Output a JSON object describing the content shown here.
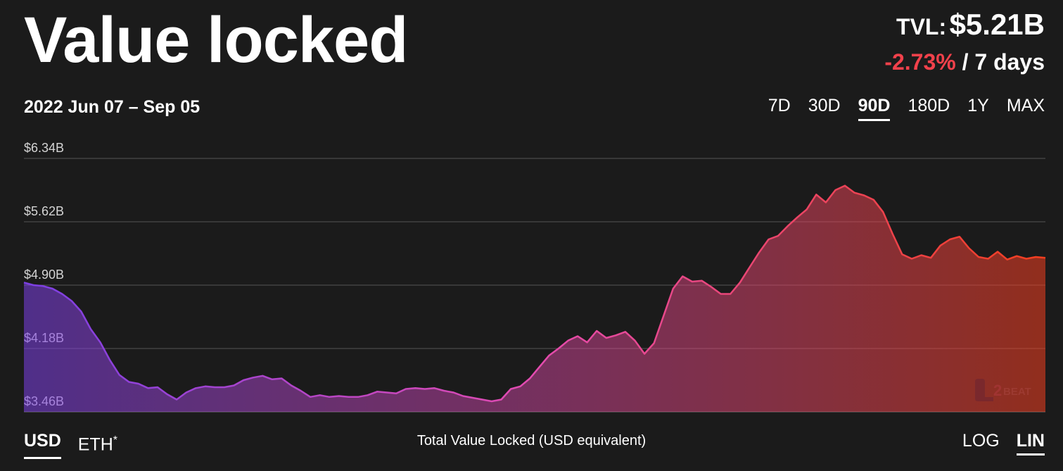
{
  "header": {
    "title": "Value locked",
    "tvl_label": "TVL:",
    "tvl_value": "$5.21B",
    "change_pct": "-2.73%",
    "change_period": "/ 7 days",
    "change_color": "#f2414b"
  },
  "range": {
    "label": "2022 Jun 07 – Sep 05"
  },
  "period_tabs": [
    {
      "label": "7D",
      "active": false
    },
    {
      "label": "30D",
      "active": false
    },
    {
      "label": "90D",
      "active": true
    },
    {
      "label": "180D",
      "active": false
    },
    {
      "label": "1Y",
      "active": false
    },
    {
      "label": "MAX",
      "active": false
    }
  ],
  "footer": {
    "currency_usd": "USD",
    "currency_eth": "ETH",
    "currency_eth_note": "*",
    "caption": "Total Value Locked (USD equivalent)",
    "scale_log": "LOG",
    "scale_lin": "LIN"
  },
  "watermark": {
    "text": "L2BEAT"
  },
  "chart_data": {
    "type": "area",
    "title": "",
    "xlabel": "",
    "ylabel": "",
    "x_start": "2022-06-07",
    "x_end": "2022-09-05",
    "ylim": [
      3.46,
      6.34
    ],
    "y_unit": "billion USD",
    "y_ticks": [
      "$3.46B",
      "$4.18B",
      "$4.90B",
      "$5.62B",
      "$6.34B"
    ],
    "gradient_colors": [
      "#7b3fe4",
      "#e44bb0",
      "#f23e1e"
    ],
    "grid": true,
    "series": [
      {
        "values": [
          4.93,
          4.9,
          4.89,
          4.86,
          4.8,
          4.72,
          4.6,
          4.4,
          4.25,
          4.05,
          3.88,
          3.8,
          3.78,
          3.73,
          3.74,
          3.66,
          3.6,
          3.68,
          3.73,
          3.75,
          3.74,
          3.74,
          3.76,
          3.82,
          3.85,
          3.87,
          3.83,
          3.84,
          3.76,
          3.7,
          3.63,
          3.65,
          3.63,
          3.64,
          3.63,
          3.63,
          3.65,
          3.69,
          3.68,
          3.67,
          3.72,
          3.73,
          3.72,
          3.73,
          3.7,
          3.68,
          3.64,
          3.62,
          3.6,
          3.58,
          3.6,
          3.72,
          3.75,
          3.84,
          3.97,
          4.1,
          4.18,
          4.27,
          4.32,
          4.25,
          4.38,
          4.3,
          4.33,
          4.37,
          4.27,
          4.12,
          4.24,
          4.55,
          4.86,
          5.0,
          4.94,
          4.95,
          4.88,
          4.8,
          4.8,
          4.93,
          5.1,
          5.27,
          5.42,
          5.46,
          5.57,
          5.67,
          5.76,
          5.93,
          5.84,
          5.98,
          6.03,
          5.95,
          5.92,
          5.87,
          5.73,
          5.48,
          5.25,
          5.2,
          5.24,
          5.21,
          5.35,
          5.42,
          5.45,
          5.32,
          5.22,
          5.2,
          5.28,
          5.19,
          5.23,
          5.2,
          5.22,
          5.21
        ]
      }
    ]
  }
}
